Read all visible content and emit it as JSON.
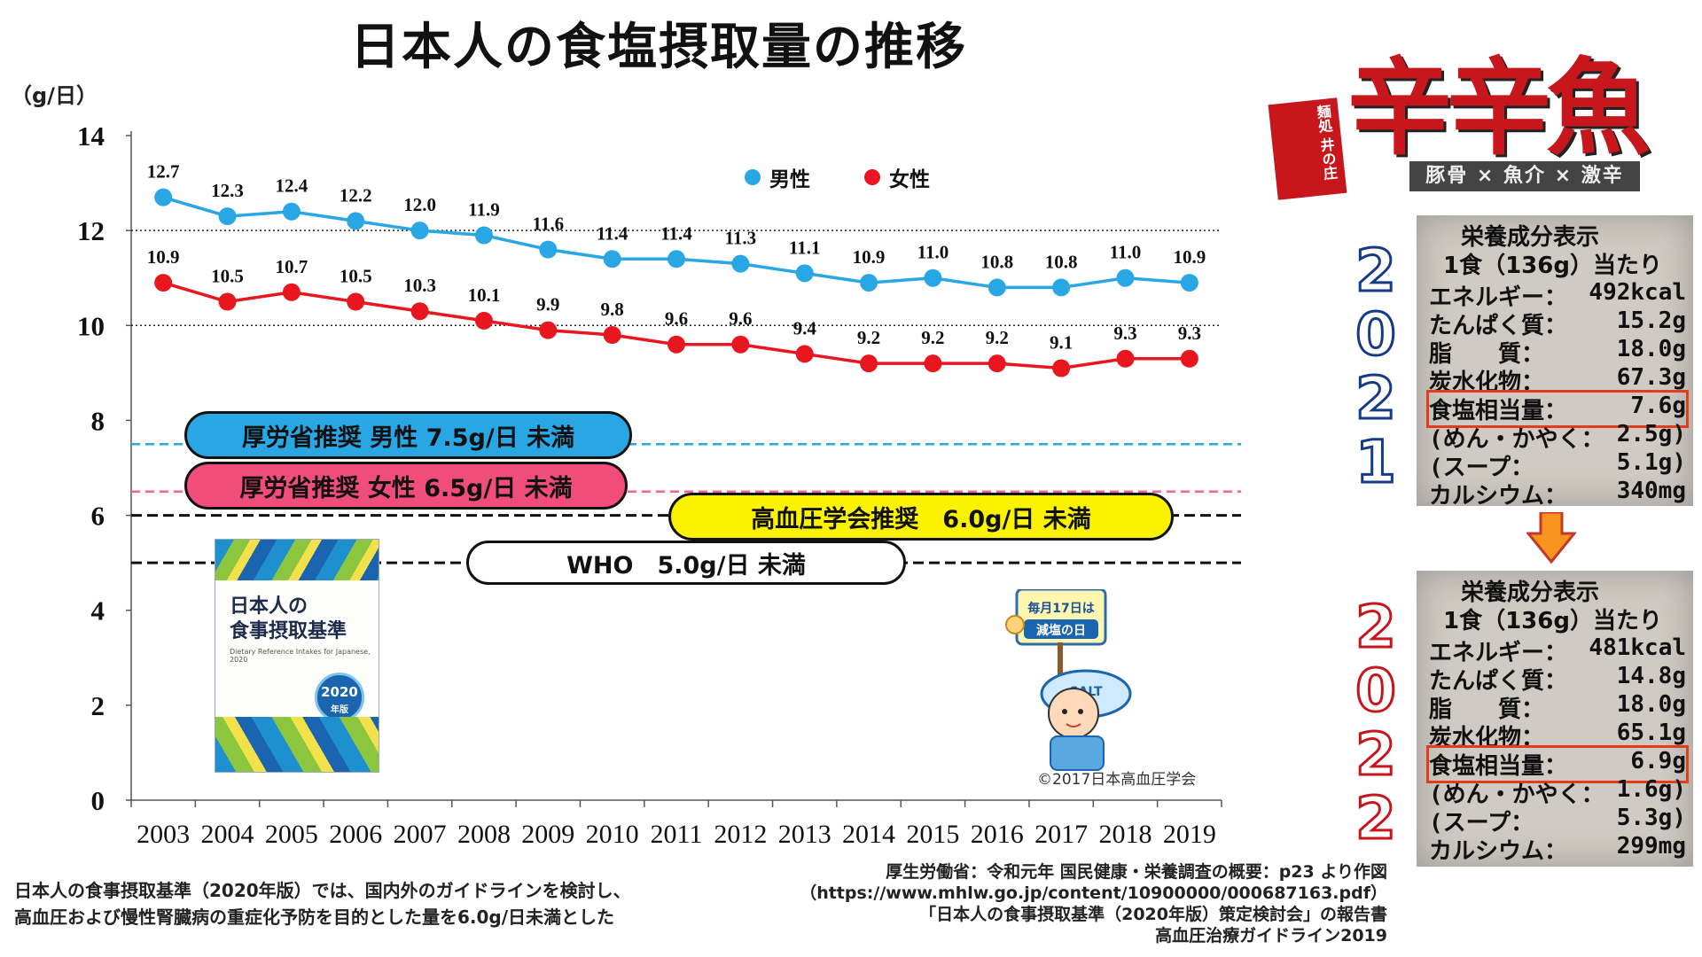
{
  "title": "日本人の食塩摂取量の推移",
  "unit_label": "（g/日）",
  "legend": {
    "male": "男性",
    "female": "女性"
  },
  "colors": {
    "male": "#29a6e4",
    "female": "#e8161e",
    "male_line": "#29a6e4",
    "female_line": "#e8161e"
  },
  "guidelines": {
    "mhlw_male": "厚労省推奨 男性 7.5g/日 未満",
    "mhlw_female": "厚労省推奨 女性 6.5g/日 未満",
    "jsh": "高血圧学会推奨　6.0g/日 未満",
    "who": "WHO　5.0g/日 未満"
  },
  "chart_data": {
    "type": "line",
    "title": "日本人の食塩摂取量の推移",
    "xlabel": "",
    "ylabel": "（g/日）",
    "ylim": [
      0,
      14
    ],
    "yticks": [
      0,
      2,
      4,
      6,
      8,
      10,
      12,
      14
    ],
    "categories": [
      "2003",
      "2004",
      "2005",
      "2006",
      "2007",
      "2008",
      "2009",
      "2010",
      "2011",
      "2012",
      "2013",
      "2014",
      "2015",
      "2016",
      "2017",
      "2018",
      "2019"
    ],
    "series": [
      {
        "name": "男性",
        "values": [
          12.7,
          12.3,
          12.4,
          12.2,
          12.0,
          11.9,
          11.6,
          11.4,
          11.4,
          11.3,
          11.1,
          10.9,
          11.0,
          10.8,
          10.8,
          11.0,
          10.9
        ]
      },
      {
        "name": "女性",
        "values": [
          10.9,
          10.5,
          10.7,
          10.5,
          10.3,
          10.1,
          9.9,
          9.8,
          9.6,
          9.6,
          9.4,
          9.2,
          9.2,
          9.2,
          9.1,
          9.3,
          9.3
        ]
      }
    ],
    "reference_lines": [
      {
        "label": "厚労省推奨 男性 7.5g/日 未満",
        "value": 7.5,
        "color": "#29a6e4",
        "style": "dashed"
      },
      {
        "label": "厚労省推奨 女性 6.5g/日 未満",
        "value": 6.5,
        "color": "#f06292",
        "style": "dashed"
      },
      {
        "label": "高血圧学会推奨　6.0g/日 未満",
        "value": 6.0,
        "color": "#111111",
        "style": "dashed"
      },
      {
        "label": "WHO　5.0g/日 未満",
        "value": 5.0,
        "color": "#111111",
        "style": "dashed"
      }
    ],
    "gridlines_dotted": [
      10,
      12
    ]
  },
  "book": {
    "title": "日本人の\n食事摂取基準",
    "subtitle": "Dietary Reference Intakes for Japanese, 2020",
    "badge_year": "2020",
    "badge_suffix": "年版"
  },
  "mascot": {
    "sign": "毎月17日は 減塩の日",
    "cap": "SALT"
  },
  "copyright": "©2017日本高血圧学会",
  "note_left": [
    "日本人の食事摂取基準（2020年版）では、国内外のガイドラインを検討し、",
    "高血圧および慢性腎臓病の重症化予防を目的とした量を6.0g/日未満とした"
  ],
  "note_right": [
    "厚生労働省：令和元年 国民健康・栄養調査の概要：p23 より作図",
    "（https://www.mhlw.go.jp/content/10900000/000687163.pdf）",
    "「日本人の食事摂取基準（2020年版）策定検討会」の報告書",
    "高血圧治療ガイドライン2019"
  ],
  "logo": {
    "main": "辛辛魚",
    "side": "麺処 井の庄",
    "tag": "豚骨 × 魚介 × 激辛"
  },
  "label_2021": {
    "year": "2021",
    "title": "栄養成分表示",
    "sub": "1食（136g）当たり",
    "rows": [
      [
        "エネルギー：",
        "492kcal"
      ],
      [
        "たんぱく質：",
        "15.2g"
      ],
      [
        "脂　　質：",
        "18.0g"
      ],
      [
        "炭水化物：",
        "67.3g"
      ],
      [
        "食塩相当量：",
        "7.6g"
      ],
      [
        "(めん・かやく：",
        "2.5g)"
      ],
      [
        "(スープ：",
        "5.1g)"
      ],
      [
        "カルシウム：",
        "340mg"
      ]
    ]
  },
  "label_2022": {
    "year": "2022",
    "title": "栄養成分表示",
    "sub": "1食（136g）当たり",
    "rows": [
      [
        "エネルギー：",
        "481kcal"
      ],
      [
        "たんぱく質：",
        "14.8g"
      ],
      [
        "脂　　質：",
        "18.0g"
      ],
      [
        "炭水化物：",
        "65.1g"
      ],
      [
        "食塩相当量：",
        "6.9g"
      ],
      [
        "(めん・かやく：",
        "1.6g)"
      ],
      [
        "(スープ：",
        "5.3g)"
      ],
      [
        "カルシウム：",
        "299mg"
      ]
    ]
  }
}
